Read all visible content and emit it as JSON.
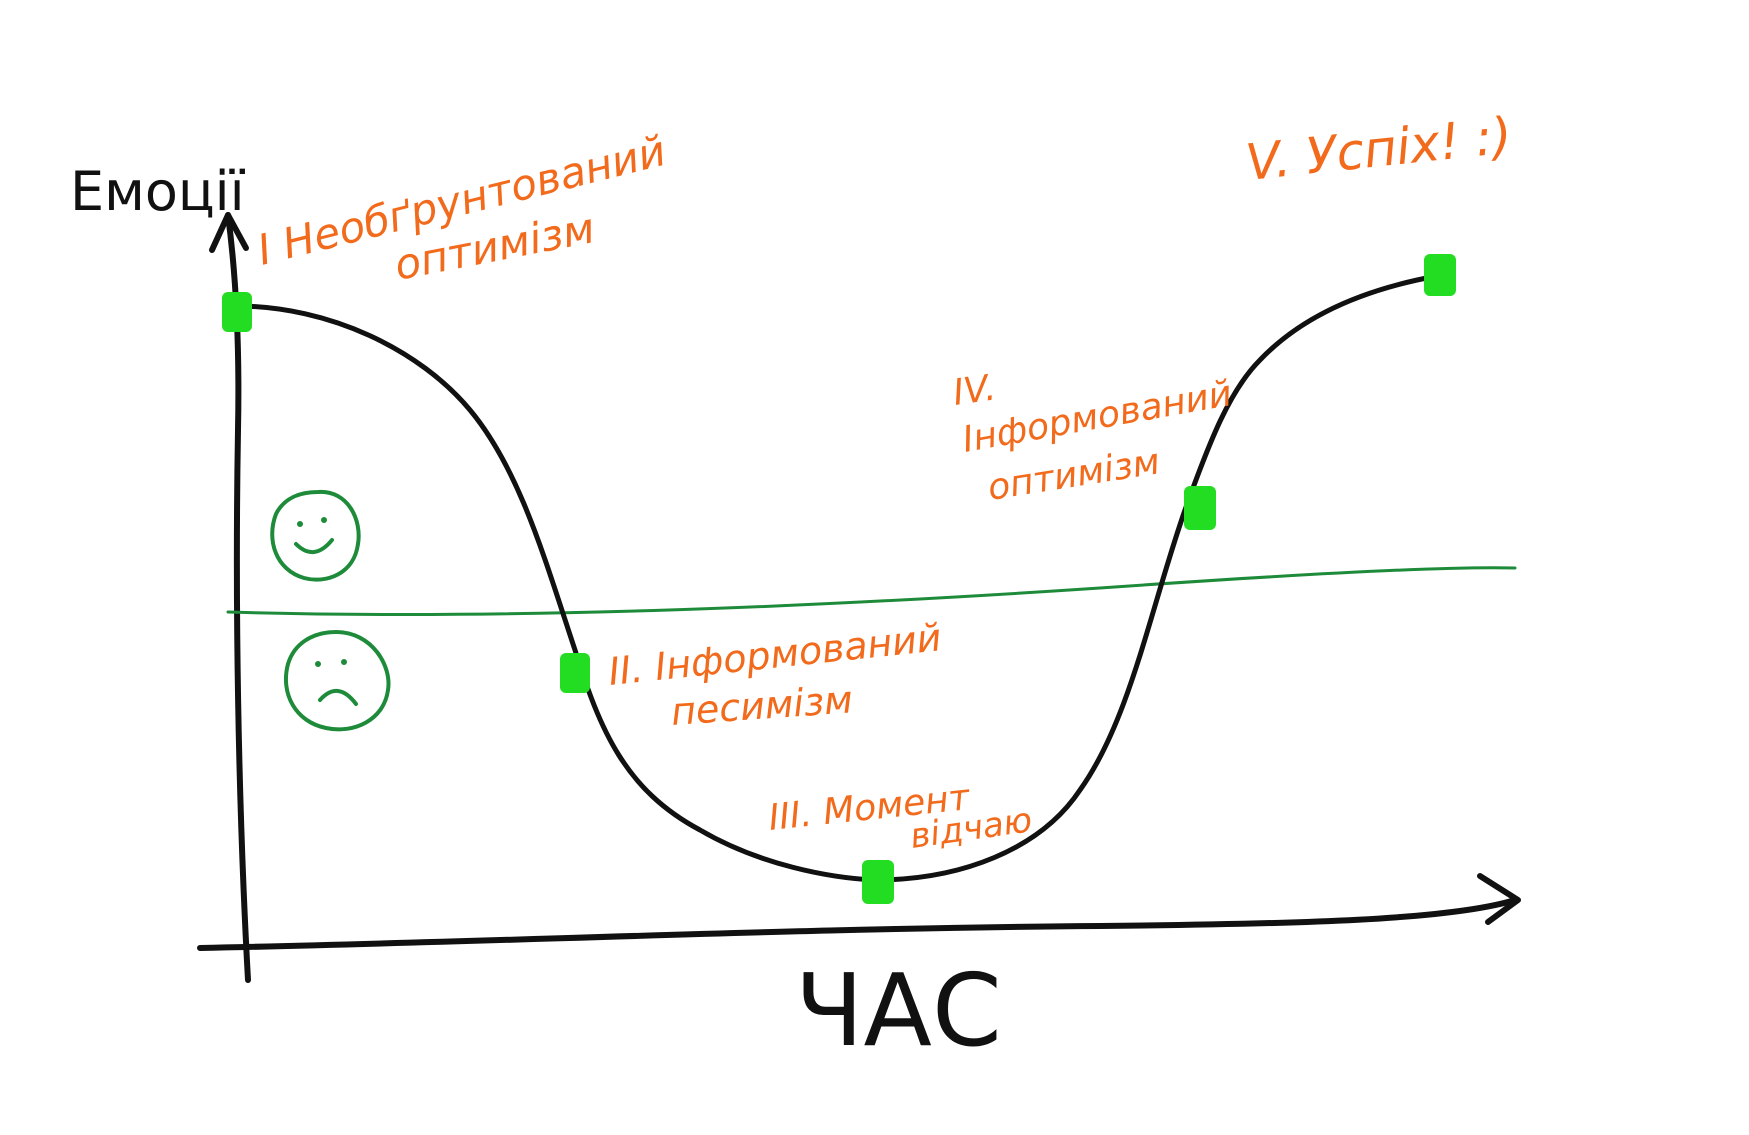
{
  "diagram": {
    "y_axis_label": "Емоції",
    "x_axis_label": "ЧАС",
    "stages": [
      {
        "lines": [
          "I Необґрунтований",
          "оптимізм"
        ]
      },
      {
        "lines": [
          "II. Інформований",
          "песимізм"
        ]
      },
      {
        "lines": [
          "III. Момент",
          "відчаю"
        ]
      },
      {
        "lines": [
          "IV.",
          "Інформований",
          "оптимізм"
        ]
      },
      {
        "lines": [
          "V. Успіх! :)"
        ]
      }
    ],
    "zones": {
      "positive_icon": "happy-face-icon",
      "negative_icon": "sad-face-icon"
    },
    "colors": {
      "curve": "#111111",
      "axes": "#111111",
      "markers": "#22dd22",
      "stage_labels": "#f26a1b",
      "divider_and_faces": "#1e8b3a"
    }
  }
}
